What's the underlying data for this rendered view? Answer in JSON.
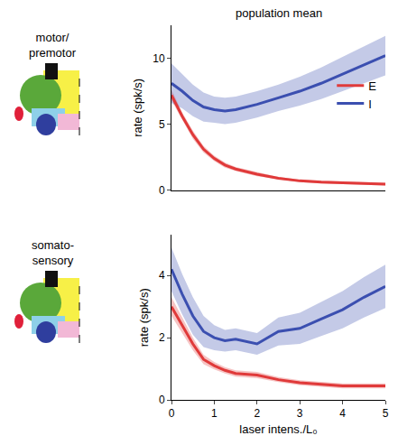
{
  "chart_data": [
    {
      "type": "line",
      "title": "population mean",
      "annotations": [
        "motor/premotor"
      ],
      "y_label": "rate (spk/s)",
      "x": [
        0,
        0.25,
        0.5,
        0.75,
        1,
        1.25,
        1.5,
        2,
        2.5,
        3,
        3.5,
        4,
        4.5,
        5
      ],
      "series": [
        {
          "name": "E",
          "color": "#e03a3a",
          "values": [
            7.2,
            5.6,
            4.2,
            3.1,
            2.4,
            1.9,
            1.6,
            1.2,
            0.9,
            0.7,
            0.6,
            0.55,
            0.5,
            0.45
          ],
          "error": [
            0.4,
            0.3,
            0.3,
            0.25,
            0.2,
            0.2,
            0.15,
            0.15,
            0.1,
            0.1,
            0.1,
            0.1,
            0.1,
            0.1
          ]
        },
        {
          "name": "I",
          "color": "#3b4fb0",
          "values": [
            8.1,
            7.5,
            6.8,
            6.3,
            6.1,
            6.0,
            6.1,
            6.5,
            7.0,
            7.5,
            8.1,
            8.8,
            9.5,
            10.2
          ],
          "error": [
            1.5,
            1.3,
            1.2,
            1.1,
            1.0,
            1.0,
            1.0,
            1.0,
            1.0,
            1.1,
            1.2,
            1.3,
            1.4,
            1.5
          ]
        }
      ],
      "xlim": [
        0,
        5
      ],
      "ylim": [
        0,
        12.5
      ],
      "yticks": [
        0,
        5,
        10
      ],
      "tick_labels": "y",
      "legend": "right",
      "grid": false
    },
    {
      "type": "line",
      "annotations": [
        "somato-sensory"
      ],
      "x_label": "laser intens./L₀",
      "y_label": "rate (spk/s)",
      "x": [
        0,
        0.25,
        0.5,
        0.75,
        1,
        1.25,
        1.5,
        2,
        2.5,
        3,
        3.5,
        4,
        4.5,
        5
      ],
      "series": [
        {
          "name": "E",
          "color": "#e03a3a",
          "values": [
            3.0,
            2.4,
            1.8,
            1.3,
            1.1,
            0.95,
            0.85,
            0.8,
            0.65,
            0.55,
            0.5,
            0.45,
            0.45,
            0.45
          ],
          "error": [
            0.3,
            0.25,
            0.2,
            0.15,
            0.12,
            0.1,
            0.1,
            0.1,
            0.08,
            0.08,
            0.08,
            0.08,
            0.08,
            0.08
          ]
        },
        {
          "name": "I",
          "color": "#3b4fb0",
          "values": [
            4.2,
            3.4,
            2.7,
            2.2,
            2.0,
            1.9,
            1.95,
            1.8,
            2.2,
            2.3,
            2.6,
            2.9,
            3.3,
            3.65
          ],
          "error": [
            0.7,
            0.65,
            0.6,
            0.5,
            0.4,
            0.35,
            0.35,
            0.35,
            0.45,
            0.5,
            0.55,
            0.6,
            0.65,
            0.7
          ]
        }
      ],
      "xlim": [
        0,
        5
      ],
      "xticks": [
        0,
        1,
        2,
        3,
        4,
        5
      ],
      "ylim": [
        0,
        5.3
      ],
      "yticks": [
        0,
        2,
        4
      ],
      "grid": false
    }
  ]
}
